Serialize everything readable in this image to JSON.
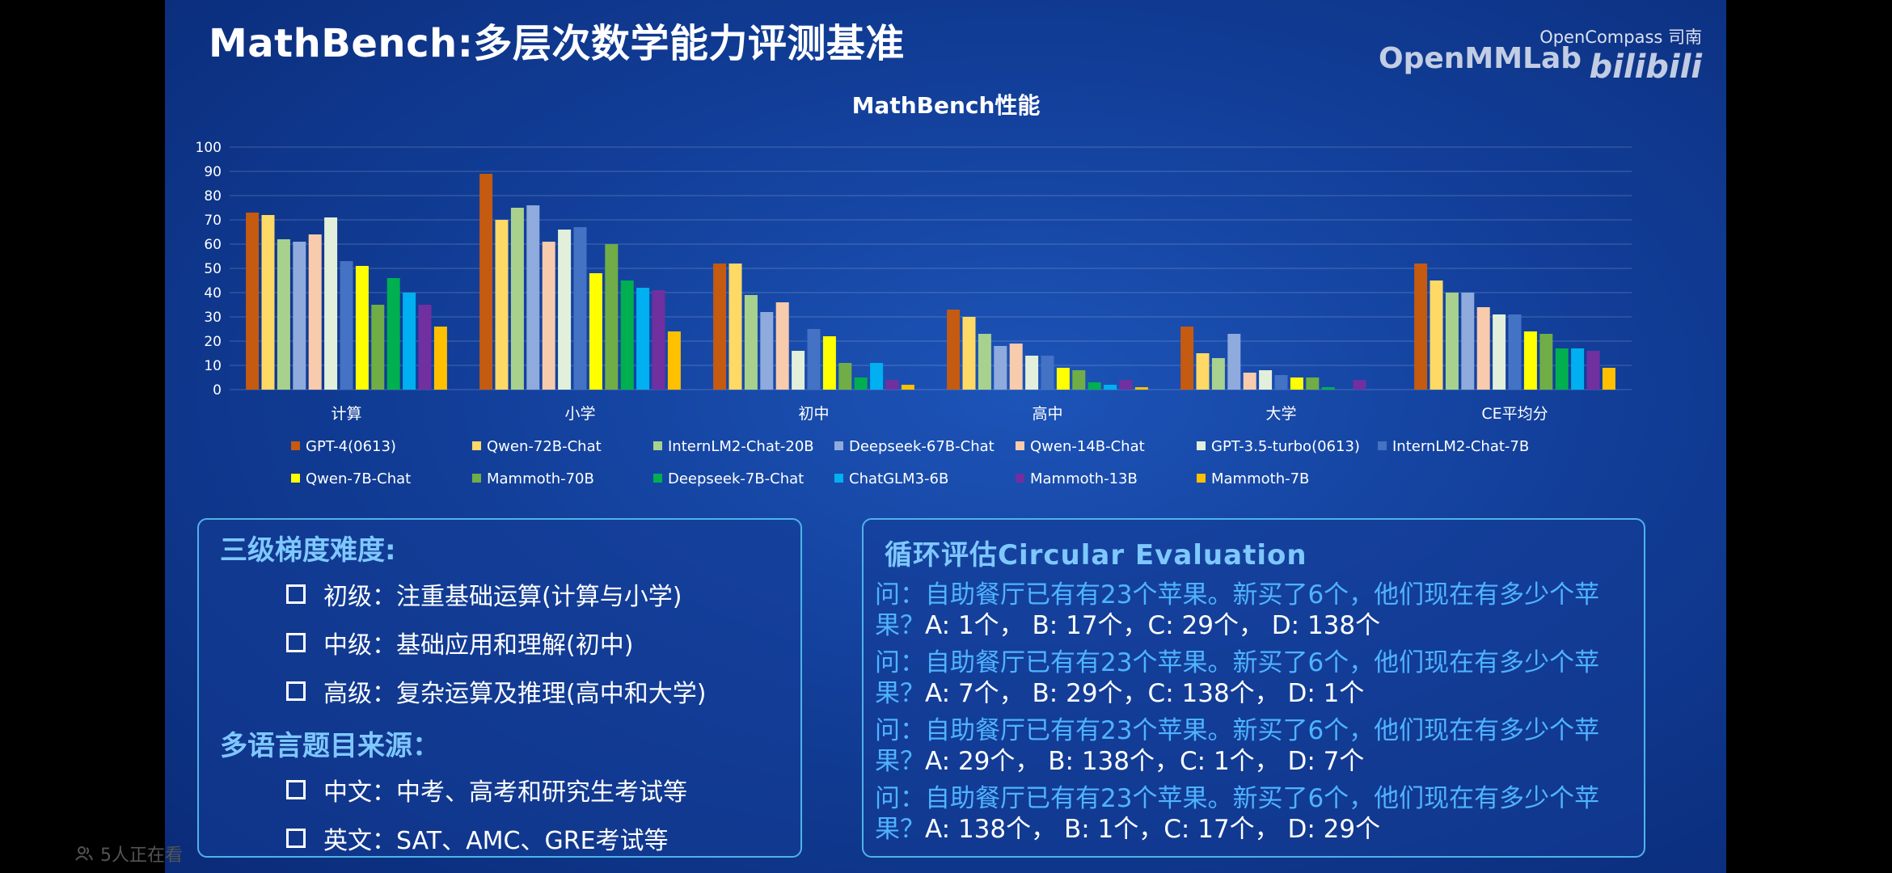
{
  "slide": {
    "title": "MathBench:多层次数学能力评测基准",
    "brand": {
      "opencompass": "OpenCompass 司南",
      "openmmlab": "OpenMMLab",
      "bilibili": "bilibili"
    }
  },
  "overlay": {
    "viewers": "5人正在看"
  },
  "colors": {
    "GPT-4(0613)": "#c55a11",
    "Qwen-72B-Chat": "#ffd966",
    "InternLM2-Chat-20B": "#a9d18e",
    "Deepseek-67B-Chat": "#8faadc",
    "Qwen-14B-Chat": "#f8cbad",
    "GPT-3.5-turbo(0613)": "#e2efda",
    "InternLM2-Chat-7B": "#4472c4",
    "Qwen-7B-Chat": "#ffff00",
    "Mammoth-70B": "#70ad47",
    "Deepseek-7B-Chat": "#00b050",
    "ChatGLM3-6B": "#00b0f0",
    "Mammoth-13B": "#7030a0",
    "Mammoth-7B": "#ffc000"
  },
  "chart_data": {
    "type": "bar",
    "title": "MathBench性能",
    "ylim": [
      0,
      100
    ],
    "yticks": [
      0,
      10,
      20,
      30,
      40,
      50,
      60,
      70,
      80,
      90,
      100
    ],
    "grid": true,
    "legend": "bottom",
    "categories": [
      "计算",
      "小学",
      "初中",
      "高中",
      "大学",
      "CE平均分"
    ],
    "series": [
      {
        "name": "GPT-4(0613)",
        "values": [
          73,
          89,
          52,
          33,
          26,
          52
        ]
      },
      {
        "name": "Qwen-72B-Chat",
        "values": [
          72,
          70,
          52,
          30,
          15,
          45
        ]
      },
      {
        "name": "InternLM2-Chat-20B",
        "values": [
          62,
          75,
          39,
          23,
          13,
          40
        ]
      },
      {
        "name": "Deepseek-67B-Chat",
        "values": [
          61,
          76,
          32,
          18,
          23,
          40
        ]
      },
      {
        "name": "Qwen-14B-Chat",
        "values": [
          64,
          61,
          36,
          19,
          7,
          34
        ]
      },
      {
        "name": "GPT-3.5-turbo(0613)",
        "values": [
          71,
          66,
          16,
          14,
          8,
          31
        ]
      },
      {
        "name": "InternLM2-Chat-7B",
        "values": [
          53,
          67,
          25,
          14,
          6,
          31
        ]
      },
      {
        "name": "Qwen-7B-Chat",
        "values": [
          51,
          48,
          22,
          9,
          5,
          24
        ]
      },
      {
        "name": "Mammoth-70B",
        "values": [
          35,
          60,
          11,
          8,
          5,
          23
        ]
      },
      {
        "name": "Deepseek-7B-Chat",
        "values": [
          46,
          45,
          5,
          3,
          1,
          17
        ]
      },
      {
        "name": "ChatGLM3-6B",
        "values": [
          40,
          42,
          11,
          2,
          0,
          17
        ]
      },
      {
        "name": "Mammoth-13B",
        "values": [
          35,
          41,
          4,
          4,
          4,
          16
        ]
      },
      {
        "name": "Mammoth-7B",
        "values": [
          26,
          24,
          2,
          1,
          0,
          9
        ]
      }
    ]
  },
  "left_panel": {
    "heading1": "三级梯度难度:",
    "items1": [
      "初级：注重基础运算(计算与小学)",
      "中级：基础应用和理解(初中)",
      "高级：复杂运算及推理(高中和大学)"
    ],
    "heading2": "多语言题目来源：",
    "items2": [
      "中文：中考、高考和研究生考试等",
      "英文：SAT、AMC、GRE考试等"
    ]
  },
  "right_panel": {
    "heading": "循环评估Circular Evaluation",
    "questions": [
      {
        "q": "问：自助餐厅已有有23个苹果。新买了6个，他们现在有多少个苹果？",
        "opts": "A: 1个， B: 17个，C: 29个， D: 138个"
      },
      {
        "q": "问：自助餐厅已有有23个苹果。新买了6个，他们现在有多少个苹果？",
        "opts": "A: 7个， B: 29个，C: 138个， D: 1个"
      },
      {
        "q": "问：自助餐厅已有有23个苹果。新买了6个，他们现在有多少个苹果？",
        "opts": "A: 29个， B: 138个，C: 1个， D: 7个"
      },
      {
        "q": "问：自助餐厅已有有23个苹果。新买了6个，他们现在有多少个苹果？",
        "opts": "A: 138个， B: 1个，C: 17个， D: 29个"
      }
    ]
  }
}
